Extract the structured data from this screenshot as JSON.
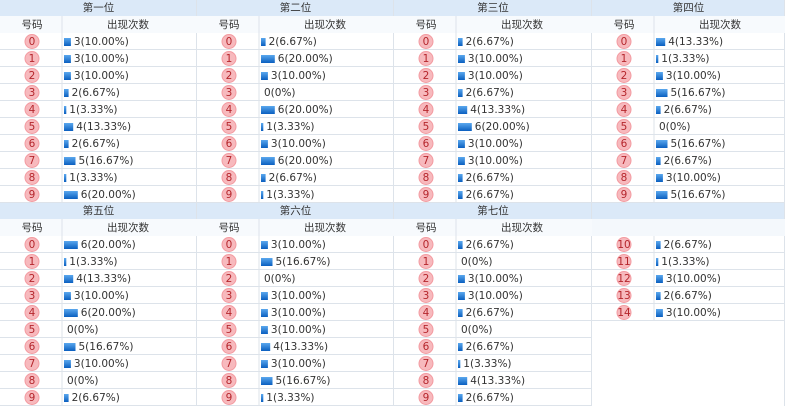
{
  "column_headers": {
    "number": "号码",
    "count": "出现次数"
  },
  "groups": [
    {
      "title": "第一位",
      "rows": [
        {
          "number": "0",
          "count": 3,
          "label": "3(10.00%)"
        },
        {
          "number": "1",
          "count": 3,
          "label": "3(10.00%)"
        },
        {
          "number": "2",
          "count": 3,
          "label": "3(10.00%)"
        },
        {
          "number": "3",
          "count": 2,
          "label": "2(6.67%)"
        },
        {
          "number": "4",
          "count": 1,
          "label": "1(3.33%)"
        },
        {
          "number": "5",
          "count": 4,
          "label": "4(13.33%)"
        },
        {
          "number": "6",
          "count": 2,
          "label": "2(6.67%)"
        },
        {
          "number": "7",
          "count": 5,
          "label": "5(16.67%)"
        },
        {
          "number": "8",
          "count": 1,
          "label": "1(3.33%)"
        },
        {
          "number": "9",
          "count": 6,
          "label": "6(20.00%)"
        }
      ]
    },
    {
      "title": "第二位",
      "rows": [
        {
          "number": "0",
          "count": 2,
          "label": "2(6.67%)"
        },
        {
          "number": "1",
          "count": 6,
          "label": "6(20.00%)"
        },
        {
          "number": "2",
          "count": 3,
          "label": "3(10.00%)"
        },
        {
          "number": "3",
          "count": 0,
          "label": "0(0%)"
        },
        {
          "number": "4",
          "count": 6,
          "label": "6(20.00%)"
        },
        {
          "number": "5",
          "count": 1,
          "label": "1(3.33%)"
        },
        {
          "number": "6",
          "count": 3,
          "label": "3(10.00%)"
        },
        {
          "number": "7",
          "count": 6,
          "label": "6(20.00%)"
        },
        {
          "number": "8",
          "count": 2,
          "label": "2(6.67%)"
        },
        {
          "number": "9",
          "count": 1,
          "label": "1(3.33%)"
        }
      ]
    },
    {
      "title": "第三位",
      "rows": [
        {
          "number": "0",
          "count": 2,
          "label": "2(6.67%)"
        },
        {
          "number": "1",
          "count": 3,
          "label": "3(10.00%)"
        },
        {
          "number": "2",
          "count": 3,
          "label": "3(10.00%)"
        },
        {
          "number": "3",
          "count": 2,
          "label": "2(6.67%)"
        },
        {
          "number": "4",
          "count": 4,
          "label": "4(13.33%)"
        },
        {
          "number": "5",
          "count": 6,
          "label": "6(20.00%)"
        },
        {
          "number": "6",
          "count": 3,
          "label": "3(10.00%)"
        },
        {
          "number": "7",
          "count": 3,
          "label": "3(10.00%)"
        },
        {
          "number": "8",
          "count": 2,
          "label": "2(6.67%)"
        },
        {
          "number": "9",
          "count": 2,
          "label": "2(6.67%)"
        }
      ]
    },
    {
      "title": "第四位",
      "rows": [
        {
          "number": "0",
          "count": 4,
          "label": "4(13.33%)"
        },
        {
          "number": "1",
          "count": 1,
          "label": "1(3.33%)"
        },
        {
          "number": "2",
          "count": 3,
          "label": "3(10.00%)"
        },
        {
          "number": "3",
          "count": 5,
          "label": "5(16.67%)"
        },
        {
          "number": "4",
          "count": 2,
          "label": "2(6.67%)"
        },
        {
          "number": "5",
          "count": 0,
          "label": "0(0%)"
        },
        {
          "number": "6",
          "count": 5,
          "label": "5(16.67%)"
        },
        {
          "number": "7",
          "count": 2,
          "label": "2(6.67%)"
        },
        {
          "number": "8",
          "count": 3,
          "label": "3(10.00%)"
        },
        {
          "number": "9",
          "count": 5,
          "label": "5(16.67%)"
        }
      ]
    },
    {
      "title": "第五位",
      "rows": [
        {
          "number": "0",
          "count": 6,
          "label": "6(20.00%)"
        },
        {
          "number": "1",
          "count": 1,
          "label": "1(3.33%)"
        },
        {
          "number": "2",
          "count": 4,
          "label": "4(13.33%)"
        },
        {
          "number": "3",
          "count": 3,
          "label": "3(10.00%)"
        },
        {
          "number": "4",
          "count": 6,
          "label": "6(20.00%)"
        },
        {
          "number": "5",
          "count": 0,
          "label": "0(0%)"
        },
        {
          "number": "6",
          "count": 5,
          "label": "5(16.67%)"
        },
        {
          "number": "7",
          "count": 3,
          "label": "3(10.00%)"
        },
        {
          "number": "8",
          "count": 0,
          "label": "0(0%)"
        },
        {
          "number": "9",
          "count": 2,
          "label": "2(6.67%)"
        }
      ]
    },
    {
      "title": "第六位",
      "rows": [
        {
          "number": "0",
          "count": 3,
          "label": "3(10.00%)"
        },
        {
          "number": "1",
          "count": 5,
          "label": "5(16.67%)"
        },
        {
          "number": "2",
          "count": 0,
          "label": "0(0%)"
        },
        {
          "number": "3",
          "count": 3,
          "label": "3(10.00%)"
        },
        {
          "number": "4",
          "count": 3,
          "label": "3(10.00%)"
        },
        {
          "number": "5",
          "count": 3,
          "label": "3(10.00%)"
        },
        {
          "number": "6",
          "count": 4,
          "label": "4(13.33%)"
        },
        {
          "number": "7",
          "count": 3,
          "label": "3(10.00%)"
        },
        {
          "number": "8",
          "count": 5,
          "label": "5(16.67%)"
        },
        {
          "number": "9",
          "count": 1,
          "label": "1(3.33%)"
        }
      ]
    },
    {
      "title": "第七位",
      "rows": [
        {
          "number": "0",
          "count": 2,
          "label": "2(6.67%)"
        },
        {
          "number": "1",
          "count": 0,
          "label": "0(0%)"
        },
        {
          "number": "2",
          "count": 3,
          "label": "3(10.00%)"
        },
        {
          "number": "3",
          "count": 3,
          "label": "3(10.00%)"
        },
        {
          "number": "4",
          "count": 2,
          "label": "2(6.67%)"
        },
        {
          "number": "5",
          "count": 0,
          "label": "0(0%)"
        },
        {
          "number": "6",
          "count": 2,
          "label": "2(6.67%)"
        },
        {
          "number": "7",
          "count": 1,
          "label": "1(3.33%)"
        },
        {
          "number": "8",
          "count": 4,
          "label": "4(13.33%)"
        },
        {
          "number": "9",
          "count": 2,
          "label": "2(6.67%)"
        },
        {
          "number": "10",
          "count": 2,
          "label": "2(6.67%)"
        },
        {
          "number": "11",
          "count": 1,
          "label": "1(3.33%)"
        },
        {
          "number": "12",
          "count": 3,
          "label": "3(10.00%)"
        },
        {
          "number": "13",
          "count": 2,
          "label": "2(6.67%)"
        },
        {
          "number": "14",
          "count": 3,
          "label": "3(10.00%)"
        }
      ]
    }
  ]
}
